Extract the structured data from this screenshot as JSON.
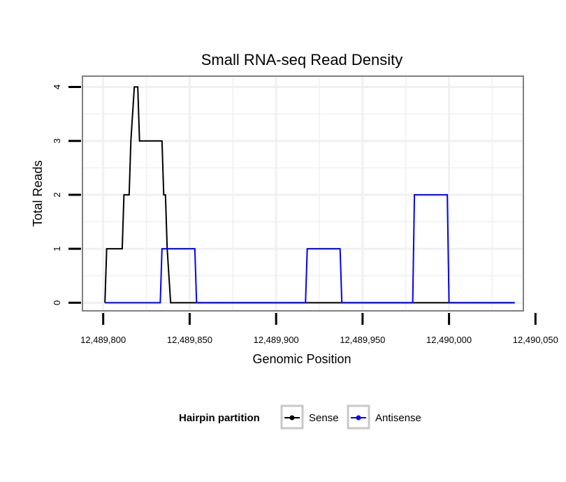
{
  "chart_data": {
    "type": "line",
    "title": "Small RNA-seq Read Density",
    "xlabel": "Genomic Position",
    "ylabel": "Total Reads",
    "xlim": [
      12489788,
      12490043
    ],
    "ylim": [
      -0.15,
      4.2
    ],
    "x_ticks": [
      12489800,
      12489850,
      12489900,
      12489950,
      12490000,
      12490050
    ],
    "x_tick_labels": [
      "12,489,800",
      "12,489,850",
      "12,489,900",
      "12,489,950",
      "12,490,000",
      "12,490,050"
    ],
    "y_ticks": [
      0,
      1,
      2,
      3,
      4
    ],
    "y_tick_labels": [
      "0",
      "1",
      "2",
      "3",
      "4"
    ],
    "grid": true,
    "legend": {
      "title": "Hairpin partition",
      "position": "bottom",
      "entries": [
        {
          "label": "Sense",
          "color": "#000000"
        },
        {
          "label": "Antisense",
          "color": "#0000ff"
        }
      ]
    },
    "series": [
      {
        "name": "Sense",
        "color": "#000000",
        "x": [
          12489801,
          12489802,
          12489803,
          12489811,
          12489812,
          12489815,
          12489816,
          12489818,
          12489819,
          12489820,
          12489821,
          12489834,
          12489835,
          12489836,
          12489837,
          12489839,
          12490038
        ],
        "y": [
          0,
          1,
          1,
          1,
          2,
          2,
          3,
          4,
          4,
          4,
          3,
          3,
          2,
          2,
          1,
          0,
          0
        ]
      },
      {
        "name": "Antisense",
        "color": "#0000ff",
        "x": [
          12489801,
          12489833,
          12489834,
          12489853,
          12489854,
          12489917,
          12489918,
          12489937,
          12489938,
          12489979,
          12489980,
          12489999,
          12490000,
          12490038
        ],
        "y": [
          0,
          0,
          1,
          1,
          0,
          0,
          1,
          1,
          0,
          0,
          2,
          2,
          0,
          0
        ]
      }
    ]
  },
  "colors": {
    "panel_border": "#808080",
    "grid": "#f0f0f0",
    "axis": "#000000",
    "legend_key_border": "#c8c8c8"
  }
}
